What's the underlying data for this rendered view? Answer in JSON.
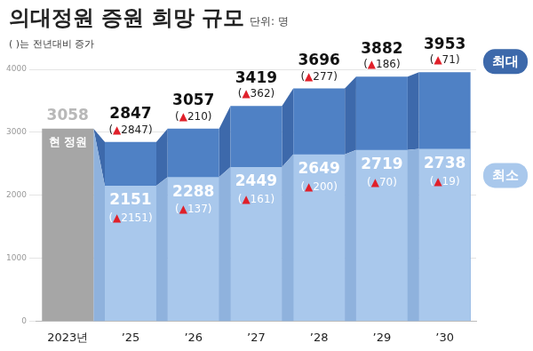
{
  "chart_data": {
    "type": "bar",
    "title": "의대정원 증원 희망 규모",
    "unit": "단위: 명",
    "subtitle": "( )는 전년대비 증가",
    "categories": [
      "2023년",
      "’25",
      "’26",
      "’27",
      "’28",
      "’29",
      "’30"
    ],
    "series": [
      {
        "name": "현 정원",
        "color": "#a6a6a6",
        "values": [
          3058,
          null,
          null,
          null,
          null,
          null,
          null
        ]
      },
      {
        "name": "최대",
        "color": "#4f81c5",
        "values": [
          null,
          2847,
          3057,
          3419,
          3696,
          3882,
          3953
        ],
        "increase": [
          null,
          2847,
          210,
          362,
          277,
          186,
          71
        ],
        "increase_labels": [
          null,
          "(▲2847)",
          "(▲210)",
          "(▲362)",
          "(▲277)",
          "(▲186)",
          "(▲71)"
        ]
      },
      {
        "name": "최소",
        "color": "#a9c8ec",
        "values": [
          null,
          2151,
          2288,
          2449,
          2649,
          2719,
          2738
        ],
        "increase": [
          null,
          2151,
          137,
          161,
          200,
          70,
          19
        ],
        "increase_labels": [
          null,
          "(▲2151)",
          "(▲137)",
          "(▲161)",
          "(▲200)",
          "(▲70)",
          "(▲19)"
        ]
      }
    ],
    "ylim": [
      0,
      4000
    ],
    "yticks": [
      0,
      1000,
      2000,
      3000,
      4000
    ],
    "grid": true,
    "data_labels": true,
    "legend": "right"
  }
}
